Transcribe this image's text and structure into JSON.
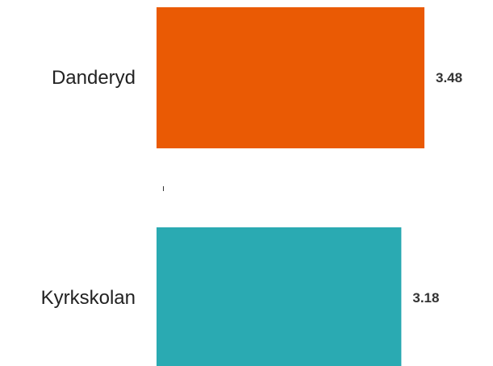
{
  "chart_data": {
    "type": "bar",
    "orientation": "horizontal",
    "categories": [
      "Danderyd",
      "Kyrkskolan"
    ],
    "values": [
      3.48,
      3.18
    ],
    "value_labels": [
      "3.48",
      "3.18"
    ],
    "colors": [
      "#EA5A04",
      "#2AAAB2"
    ],
    "title": "",
    "xlabel": "",
    "ylabel": "",
    "grid": false,
    "legend": "none"
  }
}
